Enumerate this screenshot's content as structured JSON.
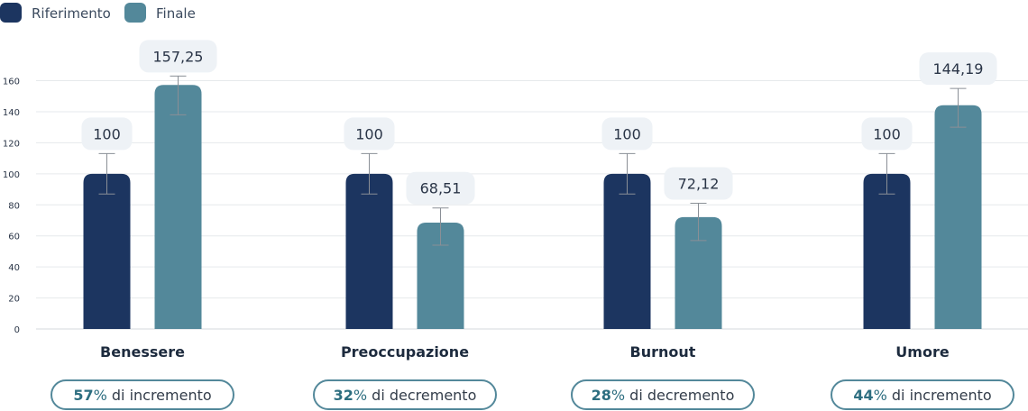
{
  "chart_data": {
    "type": "bar",
    "categories": [
      "Benessere",
      "Preoccupazione",
      "Burnout",
      "Umore"
    ],
    "series": [
      {
        "name": "Riferimento",
        "color": "#1c3560",
        "values": [
          100,
          100,
          100,
          100
        ],
        "labels": [
          "100",
          "100",
          "100",
          "100"
        ]
      },
      {
        "name": "Finale",
        "color": "#53889a",
        "values": [
          157.25,
          68.51,
          72.12,
          144.19
        ],
        "labels": [
          "157,25",
          "68,51",
          "72,12",
          "144,19"
        ]
      }
    ],
    "error_bars": [
      {
        "series": "Riferimento",
        "ranges": [
          [
            87,
            113
          ],
          [
            87,
            113
          ],
          [
            87,
            113
          ],
          [
            87,
            113
          ]
        ]
      },
      {
        "series": "Finale",
        "ranges": [
          [
            138,
            163
          ],
          [
            54,
            78
          ],
          [
            57,
            81
          ],
          [
            130,
            155
          ]
        ]
      }
    ],
    "ylim": [
      0,
      160
    ],
    "yticks": [
      "0",
      "20",
      "40",
      "60",
      "80",
      "100",
      "120",
      "140",
      "160"
    ],
    "grid": true,
    "legend": "top-left",
    "changes": [
      {
        "value": "57",
        "unit": "%",
        "text": " di incremento"
      },
      {
        "value": "32",
        "unit": "%",
        "text": " di decremento"
      },
      {
        "value": "28",
        "unit": "%",
        "text": " di decremento"
      },
      {
        "value": "44",
        "unit": "%",
        "text": " di incremento"
      }
    ]
  }
}
